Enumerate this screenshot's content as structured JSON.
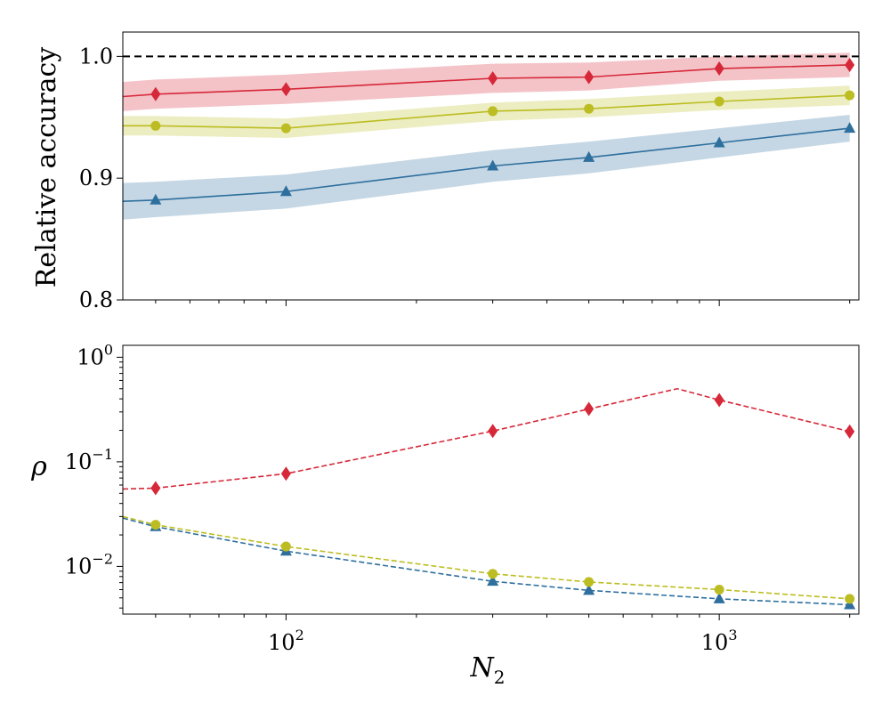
{
  "chart_data": [
    {
      "type": "line",
      "panel": "top",
      "xscale": "log",
      "yscale": "linear",
      "xlim": [
        42,
        2100
      ],
      "ylim": [
        0.8,
        1.02
      ],
      "ylabel": "Relative accuracy",
      "yticks": [
        0.8,
        0.9,
        1.0
      ],
      "ytick_labels": [
        "0.8",
        "0.9",
        "1.0"
      ],
      "reference_line": {
        "y": 1.0,
        "style": "dashed",
        "color": "#000000"
      },
      "series": [
        {
          "name": "red",
          "color": "#d62839",
          "marker": "diamond",
          "x": [
            42,
            50,
            100,
            300,
            500,
            1000,
            2000
          ],
          "y": [
            0.967,
            0.969,
            0.973,
            0.982,
            0.983,
            0.99,
            0.993
          ],
          "band_low": [
            0.955,
            0.957,
            0.961,
            0.97,
            0.972,
            0.98,
            0.983
          ],
          "band_high": [
            0.979,
            0.981,
            0.985,
            0.994,
            0.995,
            1.0,
            1.003
          ],
          "marker_x": [
            50,
            100,
            300,
            500,
            1000,
            2000
          ]
        },
        {
          "name": "yellow-green",
          "color": "#bcbd22",
          "marker": "circle",
          "x": [
            42,
            50,
            100,
            300,
            500,
            1000,
            2000
          ],
          "y": [
            0.943,
            0.943,
            0.941,
            0.955,
            0.957,
            0.963,
            0.968
          ],
          "band_low": [
            0.935,
            0.935,
            0.933,
            0.947,
            0.95,
            0.956,
            0.96
          ],
          "band_high": [
            0.951,
            0.951,
            0.949,
            0.962,
            0.965,
            0.971,
            0.976
          ],
          "marker_x": [
            50,
            100,
            300,
            500,
            1000,
            2000
          ]
        },
        {
          "name": "blue",
          "color": "#2e6f9e",
          "marker": "triangle",
          "x": [
            42,
            50,
            100,
            300,
            500,
            1000,
            2000
          ],
          "y": [
            0.881,
            0.882,
            0.889,
            0.91,
            0.917,
            0.929,
            0.941
          ],
          "band_low": [
            0.866,
            0.868,
            0.875,
            0.897,
            0.904,
            0.917,
            0.93
          ],
          "band_high": [
            0.896,
            0.897,
            0.903,
            0.923,
            0.93,
            0.941,
            0.952
          ],
          "marker_x": [
            50,
            100,
            300,
            500,
            1000,
            2000
          ]
        }
      ]
    },
    {
      "type": "line",
      "panel": "bottom",
      "xscale": "log",
      "yscale": "log",
      "xlim": [
        42,
        2100
      ],
      "ylim": [
        0.0035,
        1.3
      ],
      "ylabel": "ρ",
      "xlabel_base": "N",
      "xlabel_sub": "2",
      "xticks": [
        100,
        1000
      ],
      "xtick_labels": [
        {
          "base": "10",
          "exp": "2"
        },
        {
          "base": "10",
          "exp": "3"
        }
      ],
      "yticks": [
        0.01,
        0.1,
        1.0
      ],
      "ytick_labels": [
        {
          "base": "10",
          "exp": "−2"
        },
        {
          "base": "10",
          "exp": "−1"
        },
        {
          "base": "10",
          "exp": "0"
        }
      ],
      "series": [
        {
          "name": "red",
          "color": "#d62839",
          "marker": "diamond",
          "linestyle": "dashed",
          "x": [
            42,
            50,
            100,
            300,
            500,
            800,
            1000,
            2000
          ],
          "y": [
            0.055,
            0.056,
            0.077,
            0.197,
            0.32,
            0.5,
            0.39,
            0.195
          ],
          "marker_x": [
            50,
            100,
            300,
            500,
            1000,
            2000
          ]
        },
        {
          "name": "yellow-green",
          "color": "#bcbd22",
          "marker": "circle",
          "linestyle": "dashed",
          "x": [
            42,
            50,
            100,
            300,
            500,
            1000,
            2000
          ],
          "y": [
            0.03,
            0.025,
            0.0155,
            0.0085,
            0.0071,
            0.006,
            0.0049
          ],
          "marker_x": [
            50,
            100,
            300,
            500,
            1000,
            2000
          ]
        },
        {
          "name": "blue",
          "color": "#2e6f9e",
          "marker": "triangle",
          "linestyle": "dashed",
          "x": [
            42,
            50,
            100,
            300,
            500,
            1000,
            2000
          ],
          "y": [
            0.029,
            0.024,
            0.014,
            0.0072,
            0.0059,
            0.0049,
            0.0043
          ],
          "marker_x": [
            50,
            100,
            300,
            500,
            1000,
            2000
          ]
        }
      ]
    }
  ]
}
